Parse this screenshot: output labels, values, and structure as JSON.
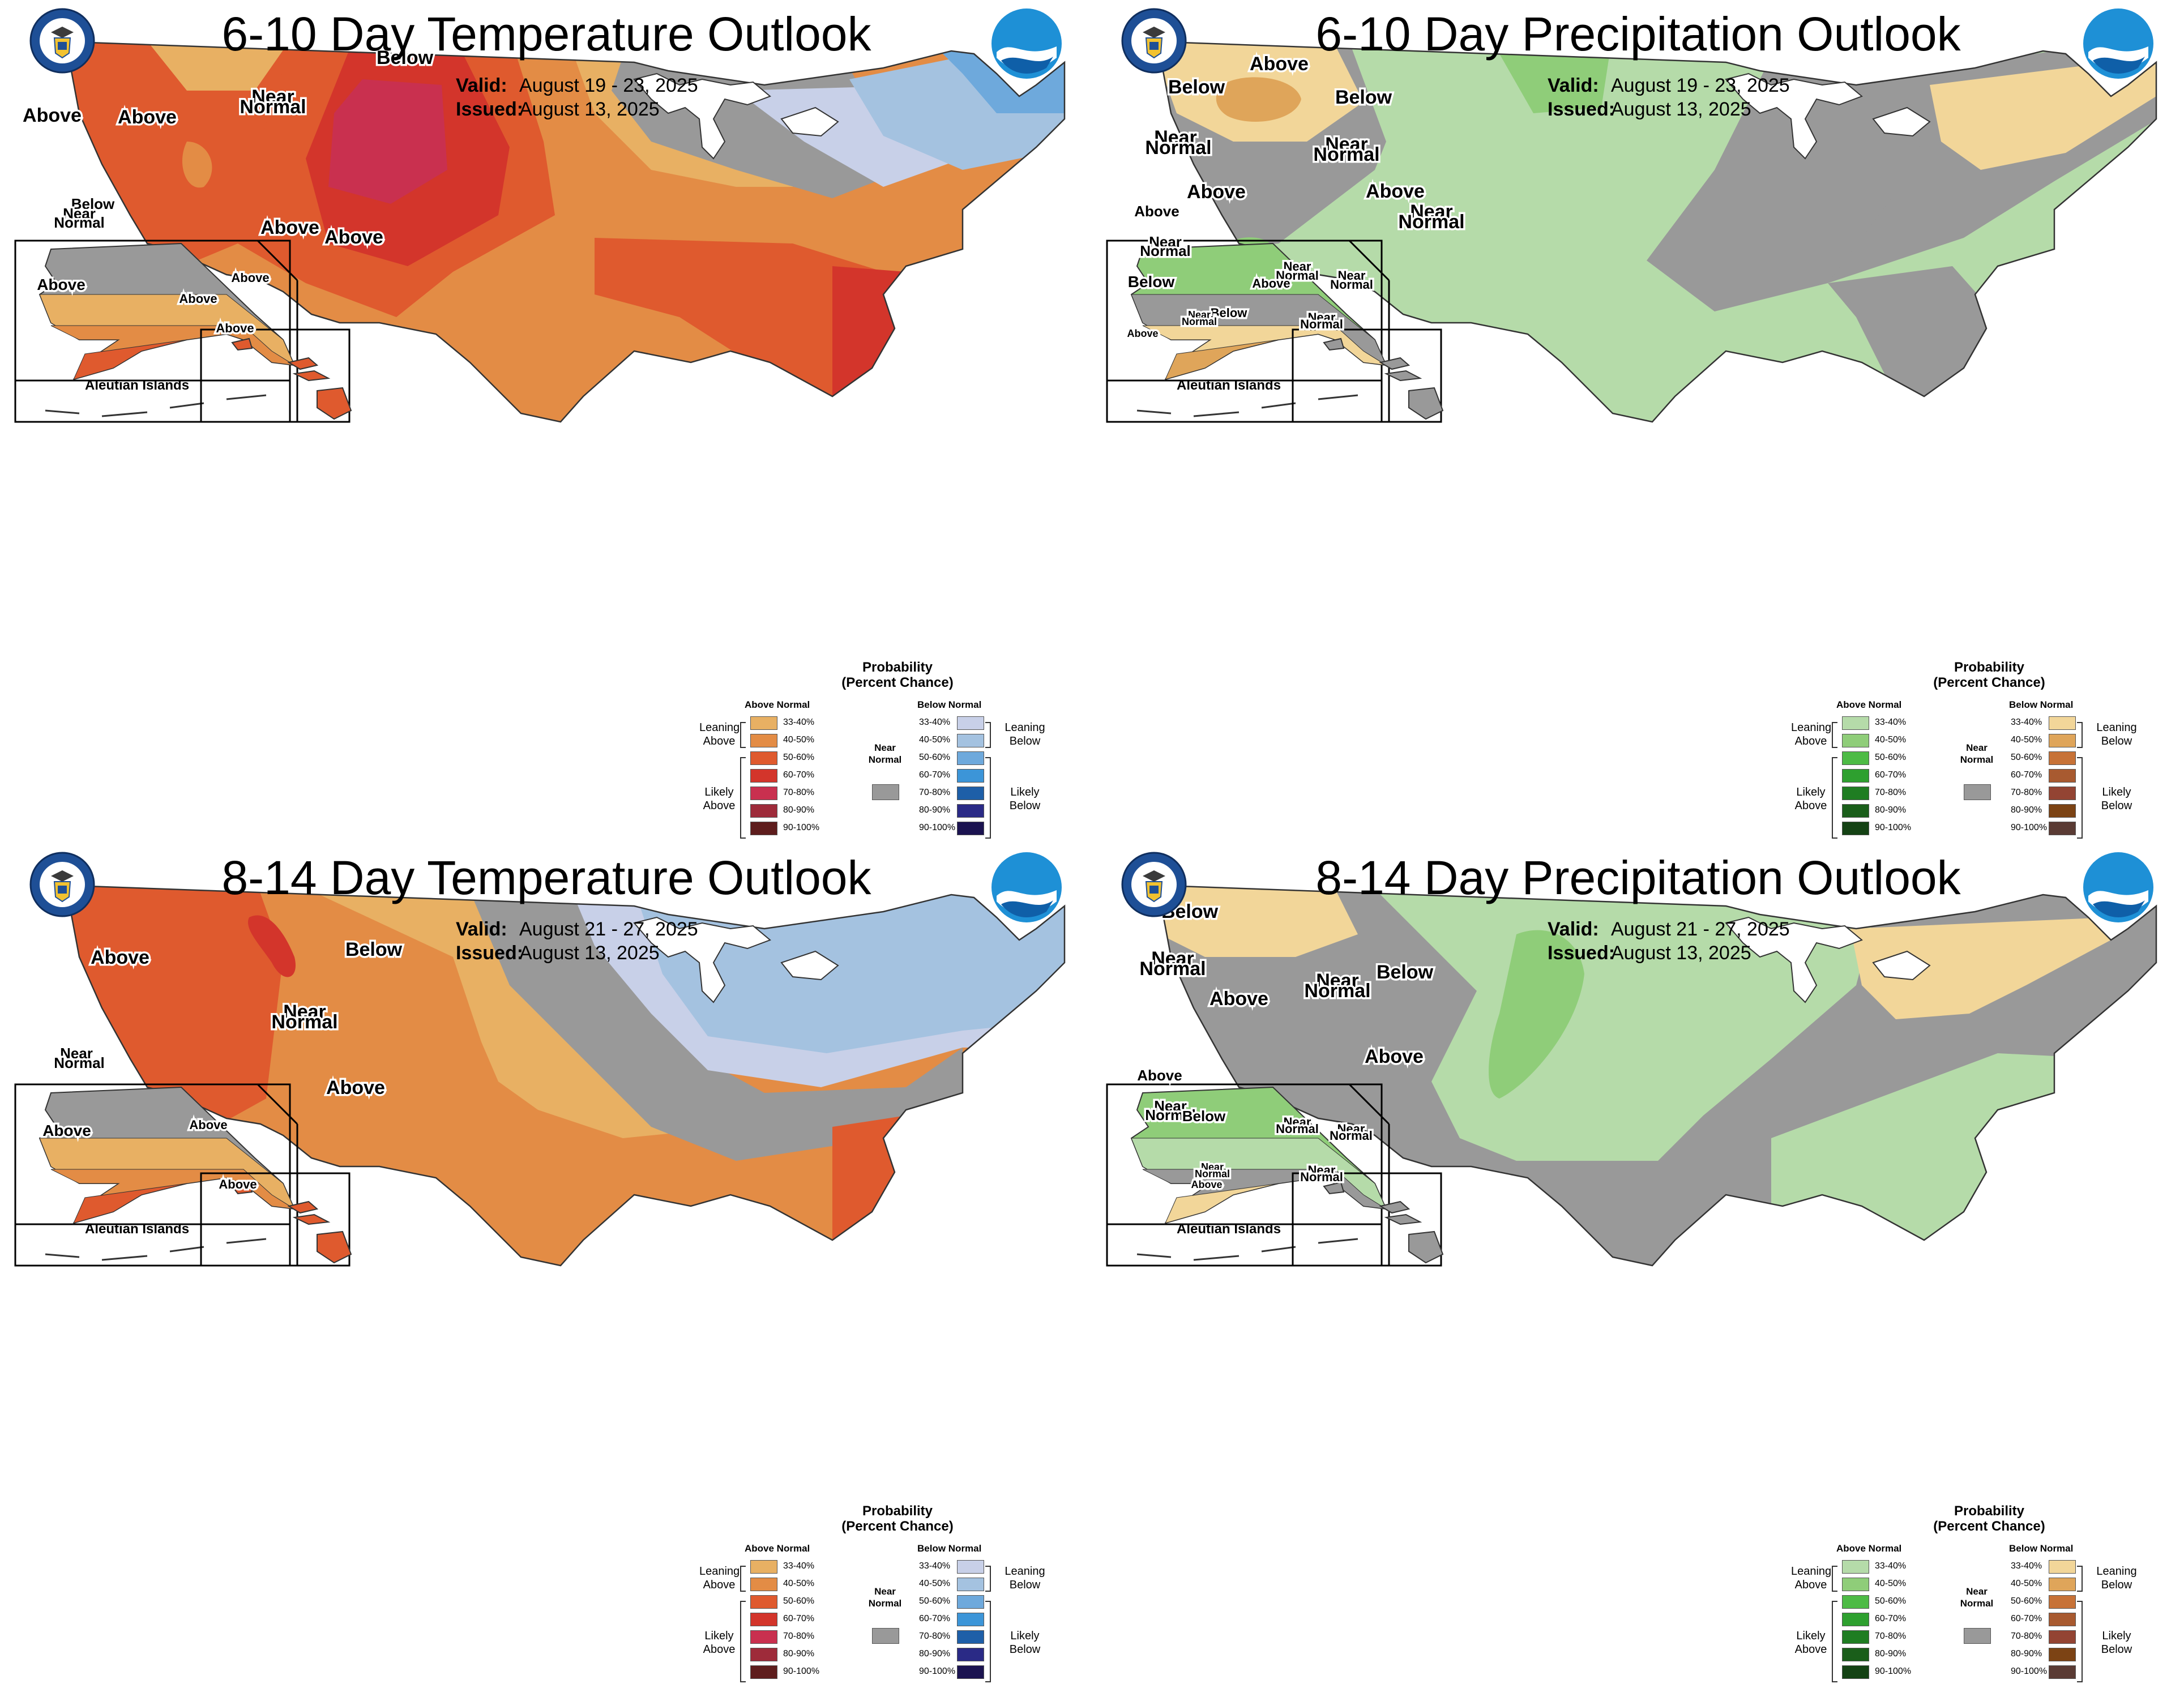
{
  "panels": [
    {
      "title": "6-10 Day Temperature Outlook",
      "valid_label": "Valid:",
      "valid": "August 19 - 23, 2025",
      "issued_label": "Issued:",
      "issued": "August 13, 2025",
      "type": "temperature",
      "map_labels": [
        "Above",
        "Above",
        "Near",
        "Normal",
        "Below",
        "Above",
        "Above",
        "Below",
        "Near",
        "Normal",
        "Above",
        "Above",
        "Above",
        "Above",
        "Above"
      ],
      "inset_title": "Aleutian Islands"
    },
    {
      "title": "6-10 Day Precipitation Outlook",
      "valid_label": "Valid:",
      "valid": "August 19 - 23, 2025",
      "issued_label": "Issued:",
      "issued": "August 13, 2025",
      "type": "precipitation",
      "map_labels": [
        "Below",
        "Above",
        "Below",
        "Near",
        "Normal",
        "Near",
        "Normal",
        "Above",
        "Above",
        "Near",
        "Normal",
        "Above",
        "Near",
        "Normal",
        "Below",
        "Below",
        "Near",
        "Normal",
        "Above",
        "Near",
        "Normal",
        "Near",
        "Normal",
        "Near",
        "Normal",
        "Above"
      ],
      "inset_title": "Aleutian Islands"
    },
    {
      "title": "8-14 Day Temperature Outlook",
      "valid_label": "Valid:",
      "valid": "August 21 - 27, 2025",
      "issued_label": "Issued:",
      "issued": "August 13, 2025",
      "type": "temperature",
      "map_labels": [
        "Above",
        "Below",
        "Near",
        "Normal",
        "Above",
        "Near",
        "Normal",
        "Above",
        "Above",
        "Above"
      ],
      "inset_title": "Aleutian Islands"
    },
    {
      "title": "8-14 Day Precipitation Outlook",
      "valid_label": "Valid:",
      "valid": "August 21 - 27, 2025",
      "issued_label": "Issued:",
      "issued": "August 13, 2025",
      "type": "precipitation",
      "map_labels": [
        "Below",
        "Near",
        "Normal",
        "Above",
        "Near",
        "Normal",
        "Below",
        "Above",
        "Above",
        "Near",
        "Normal",
        "Below",
        "Near",
        "Normal",
        "Near",
        "Normal",
        "Near",
        "Normal",
        "Near",
        "Normal",
        "Above"
      ],
      "inset_title": "Aleutian Islands"
    }
  ],
  "legend": {
    "title_line1": "Probability",
    "title_line2": "(Percent Chance)",
    "above_normal": "Above Normal",
    "below_normal": "Below Normal",
    "near_normal_1": "Near",
    "near_normal_2": "Normal",
    "leaning_above_1": "Leaning",
    "leaning_above_2": "Above",
    "likely_above_1": "Likely",
    "likely_above_2": "Above",
    "leaning_below_1": "Leaning",
    "leaning_below_2": "Below",
    "likely_below_1": "Likely",
    "likely_below_2": "Below",
    "ranges": [
      "33-40%",
      "40-50%",
      "50-60%",
      "60-70%",
      "70-80%",
      "80-90%",
      "90-100%"
    ],
    "temp_above_colors": [
      "#e8b063",
      "#e38c45",
      "#df5a2e",
      "#d3352b",
      "#c9304f",
      "#9e2b3a",
      "#5e1d1d"
    ],
    "temp_below_colors": [
      "#c8d0e8",
      "#a4c2e0",
      "#6ea9dc",
      "#3c95d8",
      "#1e5fa8",
      "#2a2a86",
      "#1b1350"
    ],
    "precip_above_colors": [
      "#b5dba9",
      "#8fcd79",
      "#4dbb45",
      "#2ea02f",
      "#1f7d22",
      "#1a5e1a",
      "#144214"
    ],
    "precip_below_colors": [
      "#f2d699",
      "#dfa55a",
      "#c77237",
      "#a85a30",
      "#934433",
      "#7c4314",
      "#5a3b34"
    ],
    "near_normal_color": "#999999"
  }
}
